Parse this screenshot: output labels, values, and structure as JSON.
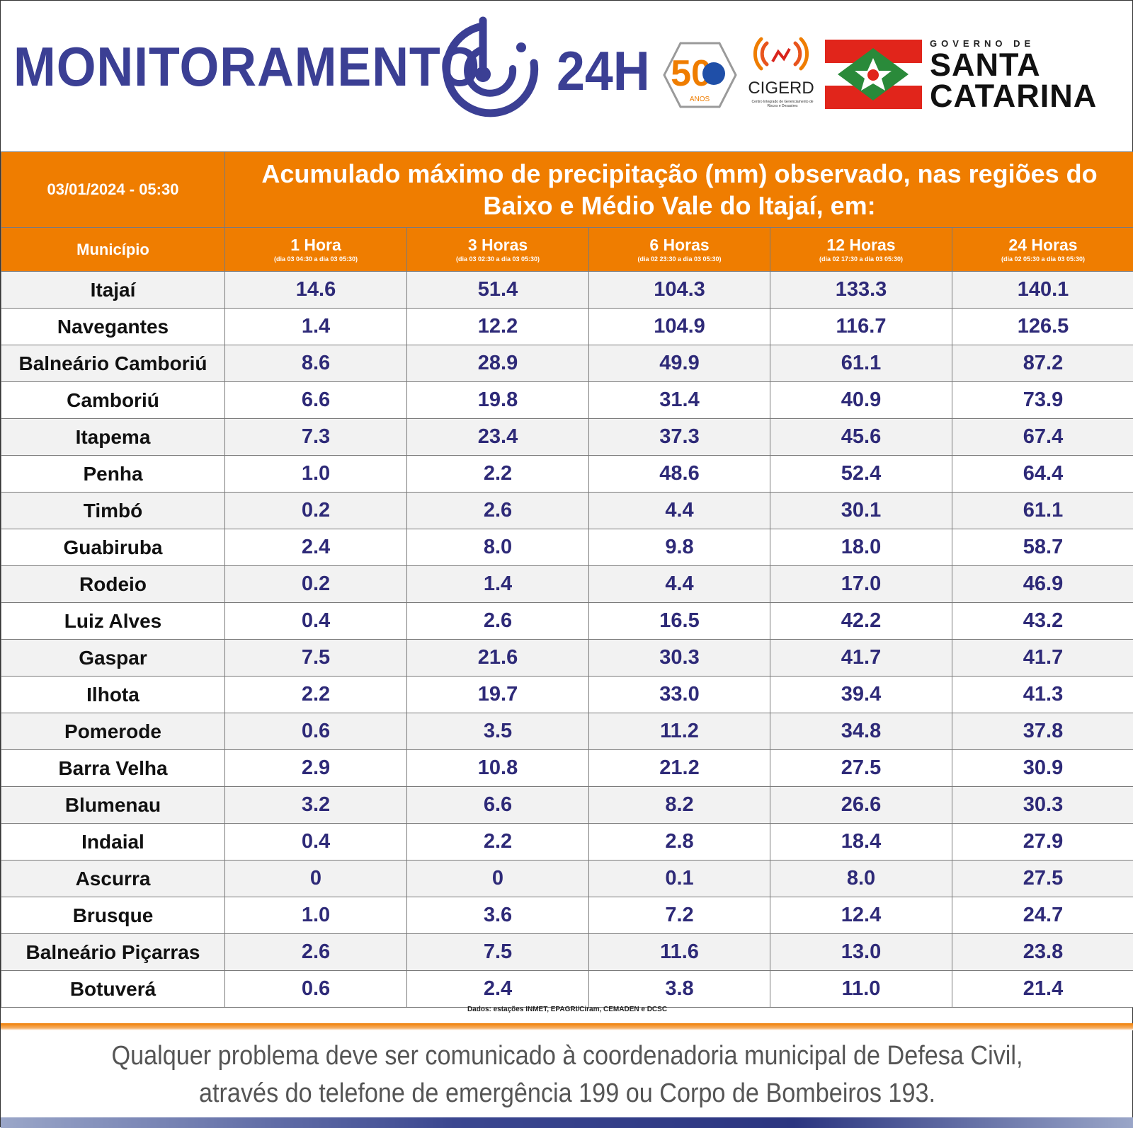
{
  "header": {
    "brand_text": "MONITORAMENTO",
    "brand_suffix": "24H",
    "logo50_text": "50",
    "logo50_sub": "ANOS",
    "cigerd_text": "CIGERD",
    "cigerd_sub": "Centro Integrado de Gerenciamento de Riscos e Desastres",
    "gov_small": "GOVERNO DE",
    "gov_big_1": "SANTA",
    "gov_big_2": "CATARINA"
  },
  "table": {
    "date": "03/01/2024 - 05:30",
    "title": "Acumulado máximo de precipitação (mm) observado, nas regiões do Baixo e Médio Vale do Itajaí, em:",
    "municipio_label": "Município",
    "columns": [
      {
        "label": "1 Hora",
        "range": "(dia 03 04:30 a dia 03 05:30)"
      },
      {
        "label": "3 Horas",
        "range": "(dia 03 02:30 a dia 03 05:30)"
      },
      {
        "label": "6 Horas",
        "range": "(dia 02 23:30 a dia 03 05:30)"
      },
      {
        "label": "12 Horas",
        "range": "(dia 02 17:30 a dia 03 05:30)"
      },
      {
        "label": "24 Horas",
        "range": "(dia 02 05:30 a dia 03 05:30)"
      }
    ],
    "rows": [
      {
        "name": "Itajaí",
        "v": [
          "14.6",
          "51.4",
          "104.3",
          "133.3",
          "140.1"
        ]
      },
      {
        "name": "Navegantes",
        "v": [
          "1.4",
          "12.2",
          "104.9",
          "116.7",
          "126.5"
        ]
      },
      {
        "name": "Balneário Camboriú",
        "v": [
          "8.6",
          "28.9",
          "49.9",
          "61.1",
          "87.2"
        ]
      },
      {
        "name": "Camboriú",
        "v": [
          "6.6",
          "19.8",
          "31.4",
          "40.9",
          "73.9"
        ]
      },
      {
        "name": "Itapema",
        "v": [
          "7.3",
          "23.4",
          "37.3",
          "45.6",
          "67.4"
        ]
      },
      {
        "name": "Penha",
        "v": [
          "1.0",
          "2.2",
          "48.6",
          "52.4",
          "64.4"
        ]
      },
      {
        "name": "Timbó",
        "v": [
          "0.2",
          "2.6",
          "4.4",
          "30.1",
          "61.1"
        ]
      },
      {
        "name": "Guabiruba",
        "v": [
          "2.4",
          "8.0",
          "9.8",
          "18.0",
          "58.7"
        ]
      },
      {
        "name": "Rodeio",
        "v": [
          "0.2",
          "1.4",
          "4.4",
          "17.0",
          "46.9"
        ]
      },
      {
        "name": "Luiz Alves",
        "v": [
          "0.4",
          "2.6",
          "16.5",
          "42.2",
          "43.2"
        ]
      },
      {
        "name": "Gaspar",
        "v": [
          "7.5",
          "21.6",
          "30.3",
          "41.7",
          "41.7"
        ]
      },
      {
        "name": "Ilhota",
        "v": [
          "2.2",
          "19.7",
          "33.0",
          "39.4",
          "41.3"
        ]
      },
      {
        "name": "Pomerode",
        "v": [
          "0.6",
          "3.5",
          "11.2",
          "34.8",
          "37.8"
        ]
      },
      {
        "name": "Barra Velha",
        "v": [
          "2.9",
          "10.8",
          "21.2",
          "27.5",
          "30.9"
        ]
      },
      {
        "name": "Blumenau",
        "v": [
          "3.2",
          "6.6",
          "8.2",
          "26.6",
          "30.3"
        ]
      },
      {
        "name": "Indaial",
        "v": [
          "0.4",
          "2.2",
          "2.8",
          "18.4",
          "27.9"
        ]
      },
      {
        "name": "Ascurra",
        "v": [
          "0",
          "0",
          "0.1",
          "8.0",
          "27.5"
        ]
      },
      {
        "name": "Brusque",
        "v": [
          "1.0",
          "3.6",
          "7.2",
          "12.4",
          "24.7"
        ]
      },
      {
        "name": "Balneário Piçarras",
        "v": [
          "2.6",
          "7.5",
          "11.6",
          "13.0",
          "23.8"
        ]
      },
      {
        "name": "Botuverá",
        "v": [
          "0.6",
          "2.4",
          "3.8",
          "11.0",
          "21.4"
        ]
      }
    ]
  },
  "source": "Dados: estações INMET, EPAGRI/Ciram, CEMADEN e DCSC",
  "footer": {
    "line1": "Qualquer problema deve ser comunicado à coordenadoria municipal de Defesa Civil,",
    "line2": "através do telefone de emergência 199 ou Corpo de Bombeiros 193."
  },
  "colors": {
    "orange": "#ef7d00",
    "brand_blue": "#3b3f94",
    "value_blue": "#2e2a78",
    "flag_red": "#e1251b",
    "flag_green": "#2a8a3a"
  }
}
